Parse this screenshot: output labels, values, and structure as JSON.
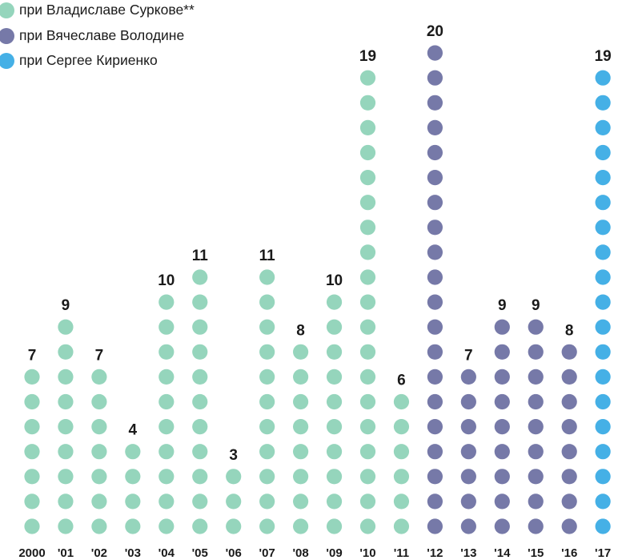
{
  "legend": [
    {
      "label": "при Владиславе Суркове**",
      "color": "#95d5bc"
    },
    {
      "label": "при Вячеславе Володине",
      "color": "#7679a8"
    },
    {
      "label": "при Сергее Кириенко",
      "color": "#45b0e6"
    }
  ],
  "chart_data": {
    "type": "bar",
    "style": "dot-column",
    "categories": [
      "2000",
      "'01",
      "'02",
      "'03",
      "'04",
      "'05",
      "'06",
      "'07",
      "'08",
      "'09",
      "'10",
      "'11",
      "'12",
      "'13",
      "'14",
      "'15",
      "'16",
      "'17"
    ],
    "values": [
      7,
      9,
      7,
      4,
      10,
      11,
      3,
      11,
      8,
      10,
      19,
      6,
      20,
      7,
      9,
      9,
      8,
      19
    ],
    "series_by_category": [
      "при Владиславе Суркове**",
      "при Владиславе Суркове**",
      "при Владиславе Суркове**",
      "при Владиславе Суркове**",
      "при Владиславе Суркове**",
      "при Владиславе Суркове**",
      "при Владиславе Суркове**",
      "при Владиславе Суркове**",
      "при Владиславе Суркове**",
      "при Владиславе Суркове**",
      "при Владиславе Суркове**",
      "при Владиславе Суркове**",
      "при Вячеславе Володине",
      "при Вячеславе Володине",
      "при Вячеславе Володине",
      "при Вячеславе Володине",
      "при Вячеславе Володине",
      "при Сергее Кириенко"
    ],
    "ylim": [
      0,
      20
    ],
    "grid": false,
    "legend_position": "top-left"
  }
}
